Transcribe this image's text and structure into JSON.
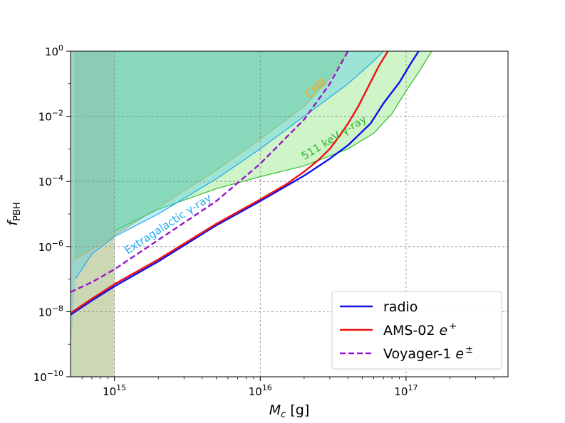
{
  "chart_data": {
    "type": "line",
    "title": "",
    "xlabel": "M_c [g]",
    "ylabel": "f_PBH",
    "xscale": "log",
    "yscale": "log",
    "xlim": [
      500000000000000.0,
      5e+17
    ],
    "ylim": [
      1e-10,
      1
    ],
    "grid": true,
    "x_ticks": [
      {
        "value": 1000000000000000.0,
        "base": "10",
        "exp": "15"
      },
      {
        "value": 1e+16,
        "base": "10",
        "exp": "16"
      },
      {
        "value": 1e+17,
        "base": "10",
        "exp": "17"
      }
    ],
    "y_ticks": [
      {
        "value": 1e-10,
        "base": "10",
        "exp": "−10"
      },
      {
        "value": 1e-08,
        "base": "10",
        "exp": "−8"
      },
      {
        "value": 1e-06,
        "base": "10",
        "exp": "−6"
      },
      {
        "value": 0.0001,
        "base": "10",
        "exp": "−4"
      },
      {
        "value": 0.01,
        "base": "10",
        "exp": "−2"
      },
      {
        "value": 1,
        "base": "10",
        "exp": "0"
      }
    ],
    "series": [
      {
        "name": "radio",
        "legend_base": "radio",
        "legend_sup": "",
        "color": "#1010ee",
        "dash": "solid",
        "x": [
          500000000000000.0,
          700000000000000.0,
          1000000000000000.0,
          2000000000000000.0,
          5000000000000000.0,
          1e+16,
          2e+16,
          3e+16,
          4e+16,
          5.7e+16,
          7e+16,
          9e+16,
          1.05e+17,
          1.22e+17
        ],
        "y": [
          8e-09,
          2.2e-08,
          6e-08,
          3.5e-07,
          4.5e-06,
          2.5e-05,
          0.00015,
          0.0005,
          0.0013,
          0.006,
          0.025,
          0.11,
          0.35,
          1.0
        ]
      },
      {
        "name": "AMS-02 e+",
        "legend_base": "AMS-02 e",
        "legend_sup": "+",
        "color": "#ee1111",
        "dash": "solid",
        "x": [
          500000000000000.0,
          700000000000000.0,
          1000000000000000.0,
          2000000000000000.0,
          5000000000000000.0,
          1e+16,
          1.5e+16,
          2e+16,
          2.5e+16,
          3e+16,
          3.5e+16,
          4e+16,
          4.7e+16,
          5.5e+16,
          6.5e+16,
          7.5e+16
        ],
        "y": [
          9e-09,
          2.5e-08,
          7e-08,
          4e-07,
          5e-06,
          2.8e-05,
          8e-05,
          0.0002,
          0.00045,
          0.001,
          0.0025,
          0.006,
          0.02,
          0.08,
          0.35,
          1.0
        ]
      },
      {
        "name": "Voyager-1 e±",
        "legend_base": "Voyager-1 e",
        "legend_sup": "±",
        "color": "#9915c9",
        "dash": "dashed",
        "x": [
          500000000000000.0,
          700000000000000.0,
          1000000000000000.0,
          2000000000000000.0,
          5000000000000000.0,
          1e+16,
          2e+16,
          3e+16,
          4e+16
        ],
        "y": [
          4e-08,
          8e-08,
          2e-07,
          1.6e-06,
          2.5e-05,
          0.00035,
          0.008,
          0.1,
          1.0
        ]
      }
    ],
    "regions": [
      {
        "name": "CMB",
        "label": "CMB",
        "fill": "#8fbf70",
        "fill_opacity": 0.45,
        "edge": "#f5a623",
        "label_color": "#f5a623",
        "x": [
          530000000000000.0,
          700000000000000.0,
          1000000000000000.0,
          2000000000000000.0,
          5000000000000000.0,
          1e+16,
          2e+16,
          3e+16,
          4e+16
        ],
        "y": [
          4e-07,
          8e-07,
          2.2e-06,
          1.6e-05,
          0.00022,
          0.002,
          0.02,
          0.15,
          1.0
        ]
      },
      {
        "name": "511 keV gamma-ray",
        "label": "511 keV γ-ray",
        "fill": "#66dd55",
        "fill_opacity": 0.32,
        "edge": "#33bb33",
        "label_color": "#33bb33",
        "x": [
          1000000000000000.0,
          2000000000000000.0,
          5000000000000000.0,
          1e+16,
          2e+16,
          4e+16,
          6e+16,
          8e+16,
          1e+17,
          1.2e+17,
          1.5e+17
        ],
        "y": [
          3e-06,
          1.4e-05,
          6e-05,
          0.00014,
          0.0003,
          0.001,
          0.003,
          0.012,
          0.06,
          0.2,
          1.0
        ]
      },
      {
        "name": "Extragalactic gamma-ray",
        "label": "Extragalactic γ-ray",
        "fill": "#55ccee",
        "fill_opacity": 0.4,
        "edge": "#22aaee",
        "label_color": "#22aaee",
        "x": [
          540000000000000.0,
          700000000000000.0,
          1000000000000000.0,
          2000000000000000.0,
          5000000000000000.0,
          1e+16,
          2e+16,
          4e+16,
          6e+16,
          7e+16
        ],
        "y": [
          1e-07,
          6e-07,
          2e-06,
          1e-05,
          0.00012,
          0.001,
          0.01,
          0.1,
          0.5,
          1.0
        ]
      }
    ],
    "left_band": {
      "name": "low-mass excluded band",
      "x": [
        500000000000000.0,
        1000000000000000.0
      ],
      "fill": "#aabd80",
      "fill_opacity": 0.6
    },
    "legend": {
      "position": "lower-right"
    }
  }
}
